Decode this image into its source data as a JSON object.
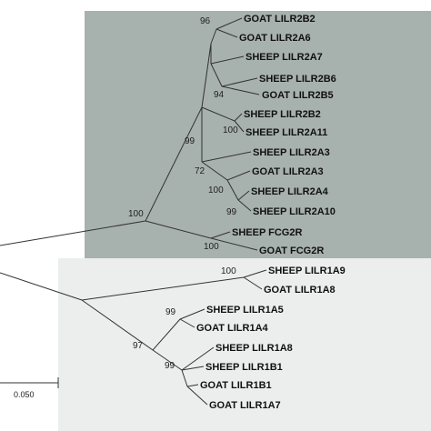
{
  "tree": {
    "upper_clade_color": "#a7b1ae",
    "lower_clade_color": "#eceeed",
    "leaves": [
      "GOAT LILR2B2",
      "GOAT LILR2A6",
      "SHEEP LILR2A7",
      "SHEEP LILR2B6",
      "GOAT LILR2B5",
      "SHEEP LILR2B2",
      "SHEEP LILR2A11",
      "SHEEP LILR2A3",
      "GOAT LILR2A3",
      "SHEEP LILR2A4",
      "SHEEP LILR2A10",
      "SHEEP FCG2R",
      "GOAT FCG2R",
      "SHEEP LILR1A9",
      "GOAT LILR1A8",
      "SHEEP LILR1A5",
      "GOAT LILR1A4",
      "SHEEP LILR1A8",
      "SHEEP LILR1B1",
      "GOAT LILR1B1",
      "GOAT LILR1A7"
    ],
    "bootstrap": [
      "96",
      "94",
      "100",
      "99",
      "72",
      "100",
      "99",
      "100",
      "100",
      "100",
      "99",
      "97",
      "99"
    ],
    "scale_bar_label": "0.050"
  }
}
